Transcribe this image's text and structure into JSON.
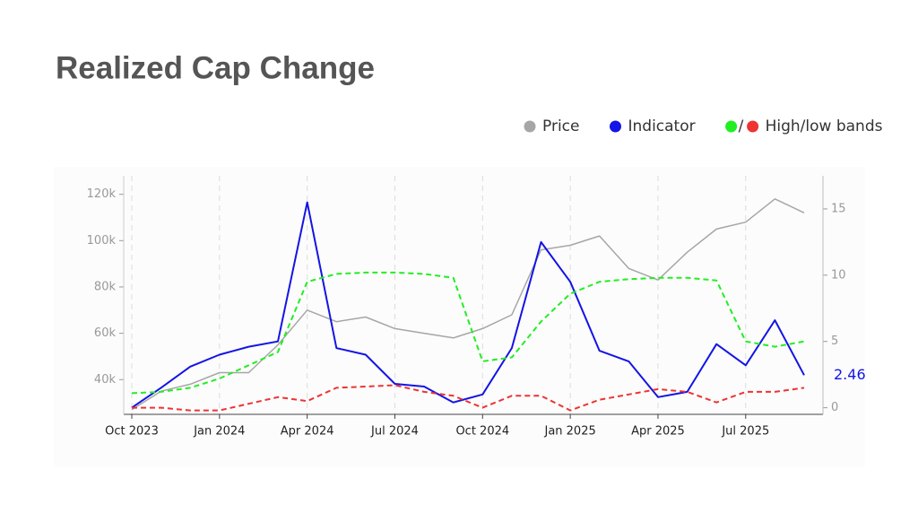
{
  "title": "Realized Cap Change",
  "chart_data": {
    "type": "line",
    "legend": [
      {
        "label": "Price",
        "colors": [
          "#a6a6a6"
        ]
      },
      {
        "label": "Indicator",
        "colors": [
          "#1414e6"
        ]
      },
      {
        "label": "High/low bands",
        "colors": [
          "#22ee22",
          "#ee3333"
        ],
        "separator": "/"
      }
    ],
    "x": [
      "2023-10",
      "2023-11",
      "2023-12",
      "2024-01",
      "2024-02",
      "2024-03",
      "2024-04",
      "2024-05",
      "2024-06",
      "2024-07",
      "2024-08",
      "2024-09",
      "2024-10",
      "2024-11",
      "2024-12",
      "2025-01",
      "2025-02",
      "2025-03",
      "2025-04",
      "2025-05",
      "2025-06",
      "2025-07",
      "2025-08",
      "2025-09"
    ],
    "xlim": [
      "2023-10",
      "2025-09"
    ],
    "xticks": [
      {
        "value": "2023-10",
        "label": "Oct 2023"
      },
      {
        "value": "2024-01",
        "label": "Jan 2024"
      },
      {
        "value": "2024-04",
        "label": "Apr 2024"
      },
      {
        "value": "2024-07",
        "label": "Jul 2024"
      },
      {
        "value": "2024-10",
        "label": "Oct 2024"
      },
      {
        "value": "2025-01",
        "label": "Jan 2025"
      },
      {
        "value": "2025-04",
        "label": "Apr 2025"
      },
      {
        "value": "2025-07",
        "label": "Jul 2025"
      }
    ],
    "ylim": [
      25000,
      128000
    ],
    "yticks": [
      {
        "value": 40000,
        "label": "40k"
      },
      {
        "value": 60000,
        "label": "60k"
      },
      {
        "value": 80000,
        "label": "80k"
      },
      {
        "value": 100000,
        "label": "100k"
      },
      {
        "value": 120000,
        "label": "120k"
      }
    ],
    "y2lim": [
      -0.5,
      17.5
    ],
    "y2ticks": [
      0,
      5,
      10,
      15
    ],
    "grid": true,
    "series": [
      {
        "name": "Price",
        "color": "#a6a6a6",
        "width": 1.5,
        "dash": false,
        "values": [
          27000,
          35000,
          38000,
          43000,
          43000,
          55000,
          70000,
          65000,
          67000,
          62000,
          60000,
          58000,
          62000,
          68000,
          96000,
          98000,
          102000,
          88000,
          83000,
          95000,
          105000,
          108000,
          118000,
          112000
        ]
      },
      {
        "name": "Indicator",
        "color": "#1414e6",
        "width": 2,
        "dash": false,
        "axis": "y2",
        "values": [
          0,
          1.5,
          3.1,
          4,
          4.6,
          5,
          15.5,
          4.5,
          4,
          1.8,
          1.6,
          0.4,
          1,
          4.5,
          12.5,
          9.5,
          4.3,
          3.5,
          0.8,
          1.2,
          4.8,
          3.2,
          6.6,
          2.46
        ]
      },
      {
        "color": "#22ee22",
        "width": 2,
        "dash": true,
        "axis": "y2",
        "values": [
          1.1,
          1.2,
          1.5,
          2.2,
          3.2,
          4.2,
          9.5,
          10.1,
          10.2,
          10.2,
          10.1,
          9.8,
          3.5,
          3.8,
          6.5,
          8.6,
          9.5,
          9.7,
          9.8,
          9.8,
          9.6,
          5,
          4.6,
          5
        ]
      },
      {
        "color": "#ee3333",
        "width": 2,
        "dash": true,
        "axis": "y2",
        "values": [
          0,
          0,
          -0.2,
          -0.2,
          0.3,
          0.8,
          0.5,
          1.5,
          1.6,
          1.7,
          1.2,
          0.9,
          0,
          0.9,
          0.9,
          -0.2,
          0.6,
          1,
          1.4,
          1.2,
          0.4,
          1.2,
          1.2,
          1.5
        ]
      }
    ]
  }
}
